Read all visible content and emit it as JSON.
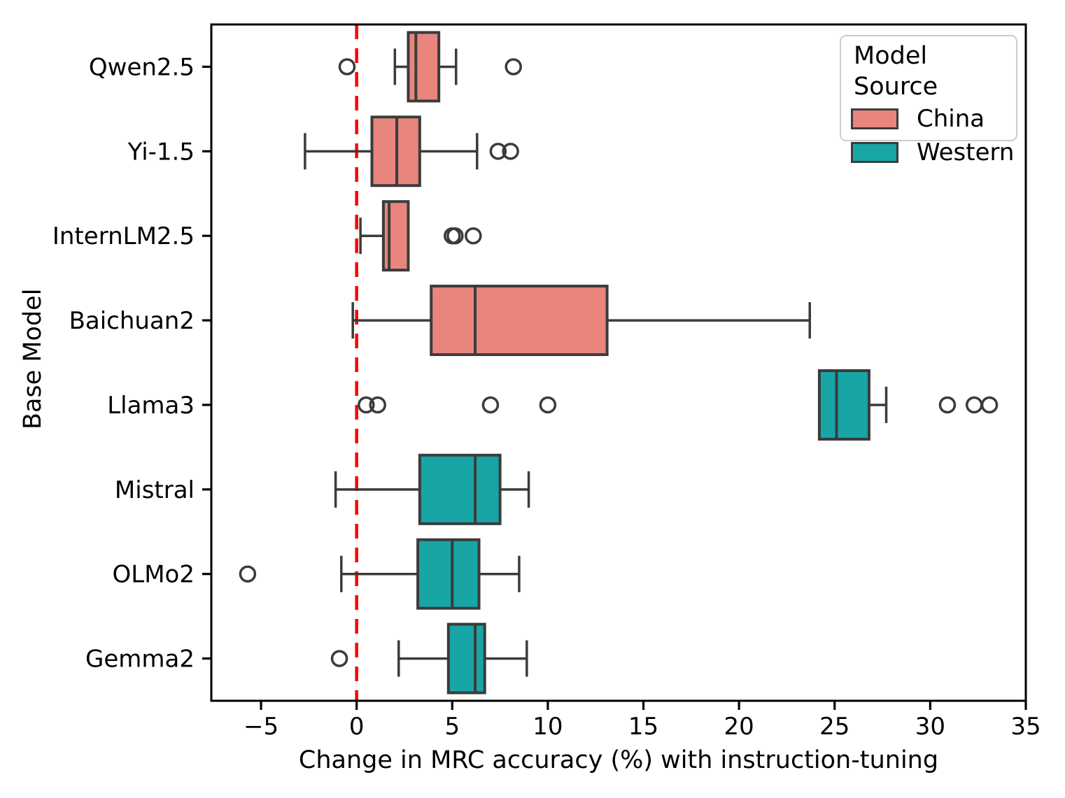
{
  "chart_data": {
    "type": "box",
    "orientation": "horizontal",
    "title": "",
    "xlabel": "Change in MRC accuracy (%) with instruction-tuning",
    "ylabel": "Base Model",
    "xlim": [
      -7.6,
      35
    ],
    "xticks": [
      -5,
      0,
      5,
      10,
      15,
      20,
      25,
      30,
      35
    ],
    "xtick_labels": [
      "−5",
      "0",
      "5",
      "10",
      "15",
      "20",
      "25",
      "30",
      "35"
    ],
    "grid": false,
    "zero_line": {
      "x": 0,
      "color": "#ff0000",
      "style": "dashed"
    },
    "legend": {
      "position": "upper right",
      "title": "Model Source",
      "entries": [
        {
          "label": "China",
          "color": "#e8867e"
        },
        {
          "label": "Western",
          "color": "#18a5a6"
        }
      ]
    },
    "edge_color": "#3b3b3b",
    "categories": [
      "Qwen2.5",
      "Yi-1.5",
      "InternLM2.5",
      "Baichuan2",
      "Llama3",
      "Mistral",
      "OLMo2",
      "Gemma2"
    ],
    "boxes": [
      {
        "model": "Qwen2.5",
        "source": "China",
        "whisker_low": 2.0,
        "q1": 2.7,
        "median": 3.1,
        "q3": 4.3,
        "whisker_high": 5.2,
        "outliers": [
          -0.5,
          8.2
        ]
      },
      {
        "model": "Yi-1.5",
        "source": "China",
        "whisker_low": -2.7,
        "q1": 0.8,
        "median": 2.1,
        "q3": 3.3,
        "whisker_high": 6.3,
        "outliers": [
          7.4,
          8.05
        ]
      },
      {
        "model": "InternLM2.5",
        "source": "China",
        "whisker_low": 0.2,
        "q1": 1.4,
        "median": 1.7,
        "q3": 2.7,
        "whisker_high": 2.7,
        "outliers": [
          5.0,
          5.15,
          6.1
        ]
      },
      {
        "model": "Baichuan2",
        "source": "China",
        "whisker_low": -0.2,
        "q1": 3.9,
        "median": 6.2,
        "q3": 13.1,
        "whisker_high": 23.7,
        "outliers": []
      },
      {
        "model": "Llama3",
        "source": "Western",
        "whisker_low": 24.2,
        "q1": 24.2,
        "median": 25.1,
        "q3": 26.8,
        "whisker_high": 27.7,
        "outliers": [
          0.5,
          1.1,
          7.0,
          10.0,
          30.9,
          32.3,
          33.1
        ]
      },
      {
        "model": "Mistral",
        "source": "Western",
        "whisker_low": -1.1,
        "q1": 3.3,
        "median": 6.2,
        "q3": 7.5,
        "whisker_high": 9.0,
        "outliers": []
      },
      {
        "model": "OLMo2",
        "source": "Western",
        "whisker_low": -0.8,
        "q1": 3.2,
        "median": 5.0,
        "q3": 6.4,
        "whisker_high": 8.5,
        "outliers": [
          -5.7
        ]
      },
      {
        "model": "Gemma2",
        "source": "Western",
        "whisker_low": 2.2,
        "q1": 4.8,
        "median": 6.2,
        "q3": 6.7,
        "whisker_high": 8.9,
        "outliers": [
          -0.9
        ]
      }
    ]
  }
}
